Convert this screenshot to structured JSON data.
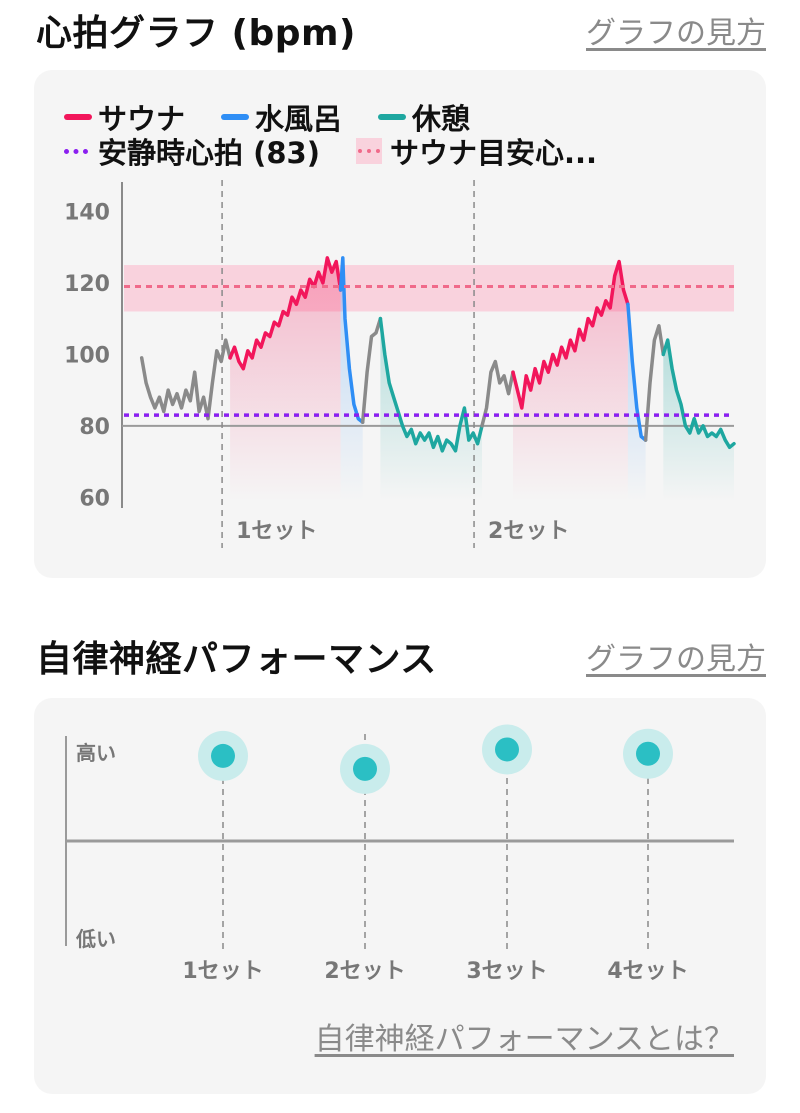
{
  "hr_section": {
    "title": "心拍グラフ (bpm)",
    "howto_label": "グラフの見方"
  },
  "ans_section": {
    "title": "自律神経パフォーマンス",
    "howto_label": "グラフの見方",
    "about_label": "自律神経パフォーマンスとは？"
  },
  "colors": {
    "sauna": "#f2165b",
    "cold_bath": "#2f8ef5",
    "rest": "#1ea7a0",
    "other": "#8a8a8a",
    "resting_hr_line": "#8b20f0",
    "sauna_target_line": "#f06a8a",
    "sauna_target_band": "#f9d2dd",
    "ans_dot": "#2bbfc4",
    "ans_halo": "#c9ecec"
  },
  "chart_data": [
    {
      "type": "line",
      "title": "心拍グラフ (bpm)",
      "y_unit": "bpm",
      "ylim": [
        57,
        146
      ],
      "y_ticks": [
        60,
        80,
        100,
        120,
        140
      ],
      "y_tick_labels": [
        "60",
        "80",
        "100",
        "120",
        "140"
      ],
      "x_axis": "sample index",
      "xlim": [
        0,
        138
      ],
      "legend_items": [
        {
          "key": "sauna",
          "label": "サウナ",
          "style": "solid"
        },
        {
          "key": "cold_bath",
          "label": "水風呂",
          "style": "solid"
        },
        {
          "key": "rest",
          "label": "休憩",
          "style": "solid"
        },
        {
          "key": "resting_hr",
          "label": "安静時心拍 (83)",
          "style": "dotted"
        },
        {
          "key": "sauna_target",
          "label": "サウナ目安心...",
          "style": "band"
        }
      ],
      "resting_hr": 83,
      "sauna_target": {
        "line": 119,
        "band": [
          112,
          125
        ]
      },
      "set_markers": [
        {
          "x": 24,
          "label": "1セット"
        },
        {
          "x": 81,
          "label": "2セット"
        }
      ],
      "series": [
        {
          "key": "other",
          "values": [
            [
              4,
              99
            ],
            [
              5,
              92
            ],
            [
              6,
              88
            ],
            [
              7,
              85
            ],
            [
              8,
              88
            ],
            [
              9,
              84
            ],
            [
              10,
              90
            ],
            [
              11,
              86
            ],
            [
              12,
              89
            ],
            [
              13,
              85
            ],
            [
              14,
              90
            ],
            [
              15,
              87
            ],
            [
              16,
              95
            ],
            [
              17,
              84
            ],
            [
              18,
              88
            ],
            [
              19,
              82
            ],
            [
              20,
              92
            ],
            [
              21,
              101
            ],
            [
              22,
              98
            ],
            [
              23,
              104
            ],
            [
              24,
              99
            ]
          ]
        },
        {
          "key": "sauna",
          "values": [
            [
              24,
              99
            ],
            [
              25,
              102
            ],
            [
              26,
              98
            ],
            [
              27,
              96
            ],
            [
              28,
              101
            ],
            [
              29,
              99
            ],
            [
              30,
              104
            ],
            [
              31,
              102
            ],
            [
              32,
              106
            ],
            [
              33,
              105
            ],
            [
              34,
              109
            ],
            [
              35,
              108
            ],
            [
              36,
              112
            ],
            [
              37,
              111
            ],
            [
              38,
              116
            ],
            [
              39,
              114
            ],
            [
              40,
              118
            ],
            [
              41,
              116
            ],
            [
              42,
              121
            ],
            [
              43,
              119
            ],
            [
              44,
              123
            ],
            [
              45,
              120
            ],
            [
              46,
              127
            ],
            [
              47,
              123
            ],
            [
              48,
              126
            ],
            [
              49,
              118
            ]
          ]
        },
        {
          "key": "cold_bath",
          "values": [
            [
              49,
              118
            ],
            [
              49.5,
              127
            ],
            [
              50,
              110
            ],
            [
              51,
              96
            ],
            [
              52,
              86
            ],
            [
              53,
              82
            ],
            [
              54,
              81
            ]
          ]
        },
        {
          "key": "other",
          "values": [
            [
              54,
              81
            ],
            [
              55,
              95
            ],
            [
              56,
              105
            ],
            [
              57,
              106
            ],
            [
              58,
              110
            ]
          ]
        },
        {
          "key": "rest",
          "values": [
            [
              58,
              110
            ],
            [
              59,
              100
            ],
            [
              60,
              92
            ],
            [
              61,
              88
            ],
            [
              62,
              84
            ],
            [
              63,
              80
            ],
            [
              64,
              77
            ],
            [
              65,
              79
            ],
            [
              66,
              75
            ],
            [
              67,
              78
            ],
            [
              68,
              76
            ],
            [
              69,
              78
            ],
            [
              70,
              74
            ],
            [
              71,
              77
            ],
            [
              72,
              73
            ],
            [
              73,
              76
            ],
            [
              74,
              75
            ],
            [
              75,
              73
            ],
            [
              76,
              80
            ],
            [
              77,
              85
            ],
            [
              78,
              76
            ],
            [
              79,
              78
            ],
            [
              80,
              75
            ],
            [
              81,
              80
            ]
          ]
        },
        {
          "key": "other",
          "values": [
            [
              81,
              80
            ],
            [
              82,
              85
            ],
            [
              83,
              95
            ],
            [
              84,
              98
            ],
            [
              85,
              92
            ],
            [
              86,
              94
            ],
            [
              87,
              89
            ],
            [
              88,
              95
            ]
          ]
        },
        {
          "key": "sauna",
          "values": [
            [
              88,
              95
            ],
            [
              89,
              90
            ],
            [
              90,
              85
            ],
            [
              91,
              94
            ],
            [
              92,
              90
            ],
            [
              93,
              96
            ],
            [
              94,
              92
            ],
            [
              95,
              98
            ],
            [
              96,
              95
            ],
            [
              97,
              100
            ],
            [
              98,
              97
            ],
            [
              99,
              102
            ],
            [
              100,
              99
            ],
            [
              101,
              104
            ],
            [
              102,
              101
            ],
            [
              103,
              107
            ],
            [
              104,
              104
            ],
            [
              105,
              110
            ],
            [
              106,
              108
            ],
            [
              107,
              113
            ],
            [
              108,
              111
            ],
            [
              109,
              115
            ],
            [
              110,
              113
            ],
            [
              111,
              122
            ],
            [
              112,
              126
            ],
            [
              113,
              118
            ],
            [
              114,
              114
            ]
          ]
        },
        {
          "key": "cold_bath",
          "values": [
            [
              114,
              114
            ],
            [
              115,
              98
            ],
            [
              116,
              85
            ],
            [
              117,
              77
            ],
            [
              118,
              76
            ]
          ]
        },
        {
          "key": "other",
          "values": [
            [
              118,
              76
            ],
            [
              119,
              92
            ],
            [
              120,
              104
            ],
            [
              121,
              108
            ],
            [
              122,
              100
            ]
          ]
        },
        {
          "key": "rest",
          "values": [
            [
              122,
              100
            ],
            [
              123,
              104
            ],
            [
              124,
              96
            ],
            [
              125,
              90
            ],
            [
              126,
              86
            ],
            [
              127,
              80
            ],
            [
              128,
              78
            ],
            [
              129,
              82
            ],
            [
              130,
              78
            ],
            [
              131,
              80
            ],
            [
              132,
              77
            ],
            [
              133,
              78
            ],
            [
              134,
              77
            ],
            [
              135,
              79
            ],
            [
              136,
              76
            ],
            [
              137,
              74
            ],
            [
              138,
              75
            ]
          ]
        }
      ]
    },
    {
      "type": "scatter",
      "title": "自律神経パフォーマンス",
      "y_labels": {
        "high": "高い",
        "low": "低い"
      },
      "ylim": [
        0,
        1
      ],
      "categories": [
        "1セット",
        "2セット",
        "3セット",
        "4セット"
      ],
      "values": [
        0.88,
        0.82,
        0.91,
        0.89
      ]
    }
  ]
}
